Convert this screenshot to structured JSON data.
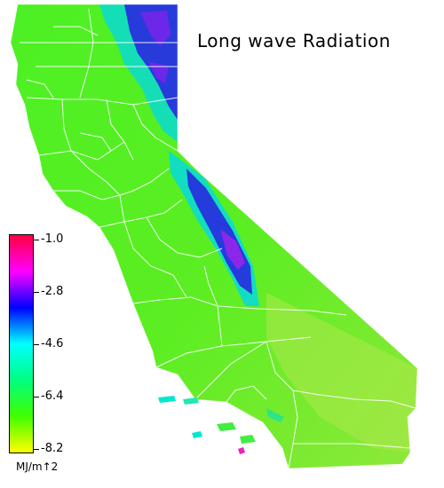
{
  "title": "Long wave Radiation",
  "colorbar": {
    "labels": [
      "-1.0",
      "-2.8",
      "-4.6",
      "-6.4",
      "-8.2"
    ],
    "colors": [
      "#ff0040",
      "#ff00ff",
      "#0000ff",
      "#00ffff",
      "#00ff80",
      "#40ff00",
      "#ffff00"
    ],
    "unit": "MJ/m↑2"
  },
  "map": {
    "region": "California",
    "base_color": "#55ee22",
    "county_line_color": "#ffffff",
    "high_value_color": "#2a1ee0"
  }
}
